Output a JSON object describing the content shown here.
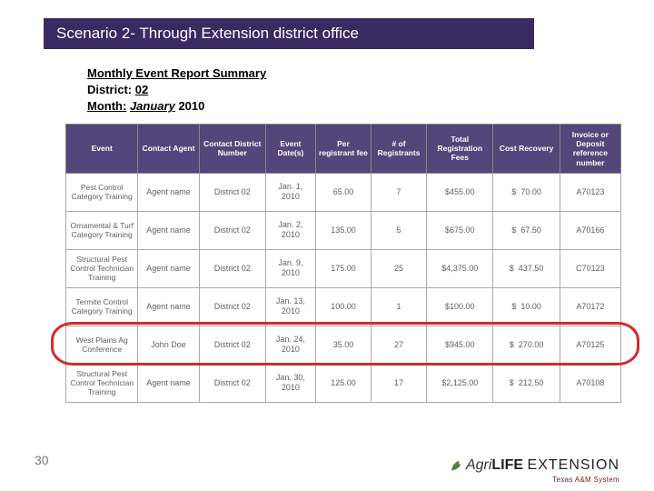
{
  "banner": {
    "title": "Scenario 2- Through Extension district office"
  },
  "report": {
    "title": "Monthly Event Report Summary",
    "district_label": "District:",
    "district_value": "02",
    "month_label": "Month:",
    "month_value": "January",
    "year": "2010"
  },
  "table": {
    "headers": [
      "Event",
      "Contact Agent",
      "Contact District Number",
      "Event Date(s)",
      "Per registrant fee",
      "# of Registrants",
      "Total Registration Fees",
      "Cost Recovery",
      "Invoice or Deposit reference number"
    ],
    "rows": [
      {
        "event": "Pest Control Category Training",
        "agent": "Agent name",
        "district": "District 02",
        "date": "Jan. 1, 2010",
        "fee": "65.00",
        "regs": "7",
        "total": "$455.00",
        "cost_prefix": "$",
        "cost_val": "70.00",
        "ref": "A70123"
      },
      {
        "event": "Ornamental & Turf Category Training",
        "agent": "Agent name",
        "district": "District 02",
        "date": "Jan. 2, 2010",
        "fee": "135.00",
        "regs": "5",
        "total": "$675.00",
        "cost_prefix": "$",
        "cost_val": "67.50",
        "ref": "A70166"
      },
      {
        "event": "Structural Pest Control Technician Training",
        "agent": "Agent name",
        "district": "District 02",
        "date": "Jan. 9, 2010",
        "fee": "175.00",
        "regs": "25",
        "total": "$4,375.00",
        "cost_prefix": "$",
        "cost_val": "437.50",
        "ref": "C70123"
      },
      {
        "event": "Termite Control Category Training",
        "agent": "Agent name",
        "district": "District 02",
        "date": "Jan. 13, 2010",
        "fee": "100.00",
        "regs": "1",
        "total": "$100.00",
        "cost_prefix": "$",
        "cost_val": "10.00",
        "ref": "A70172"
      },
      {
        "event": "West Plains Ag Conference",
        "agent": "John Doe",
        "district": "District 02",
        "date": "Jan. 24, 2010",
        "fee": "35.00",
        "regs": "27",
        "total": "$945.00",
        "cost_prefix": "$",
        "cost_val": "270.00",
        "ref": "A70125"
      },
      {
        "event": "Structural Pest Control Technician Training",
        "agent": "Agent name",
        "district": "District 02",
        "date": "Jan. 30, 2010",
        "fee": "125.00",
        "regs": "17",
        "total": "$2,125.00",
        "cost_prefix": "$",
        "cost_val": "212.50",
        "ref": "A70108"
      }
    ],
    "highlight_row_index": 4,
    "colors": {
      "banner_bg": "#3a2a62",
      "header_bg": "#54457a",
      "ring": "#d42a2a",
      "text_muted": "#606060"
    }
  },
  "page_number": "30",
  "logo": {
    "brand_prefix": "Agri",
    "brand_mid": "LIFE",
    "brand_suffix": "EXTENSION",
    "subtitle": "Texas A&M System"
  }
}
